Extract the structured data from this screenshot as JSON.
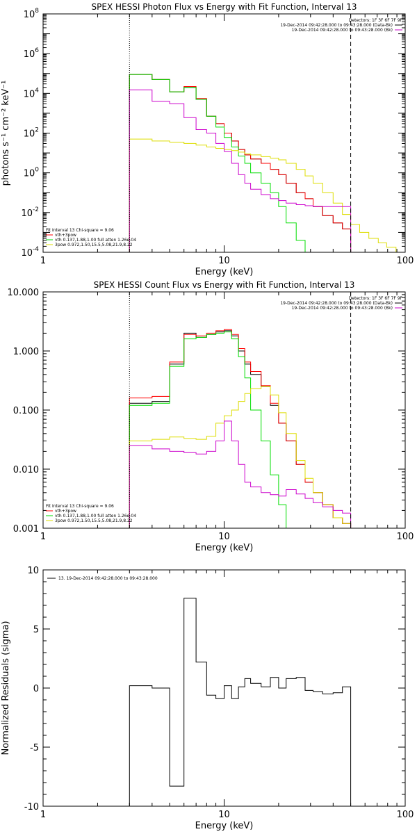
{
  "chart_data": [
    {
      "type": "line",
      "title": "SPEX HESSI Photon Flux vs Energy with Fit Function, Interval 13",
      "xlabel": "Energy (keV)",
      "ylabel": "photons s⁻¹ cm⁻² keV⁻¹",
      "xscale": "log",
      "yscale": "log",
      "xlim": [
        1,
        100
      ],
      "ylim": [
        0.0001,
        100000000
      ],
      "x_ticks": [
        "1",
        "10",
        "100"
      ],
      "y_ticks": [
        {
          "base": "10",
          "exp": "-4",
          "v": 0.0001
        },
        {
          "base": "10",
          "exp": "-2",
          "v": 0.01
        },
        {
          "base": "10",
          "exp": "0",
          "v": 1
        },
        {
          "base": "10",
          "exp": "2",
          "v": 100
        },
        {
          "base": "10",
          "exp": "4",
          "v": 10000
        },
        {
          "base": "10",
          "exp": "6",
          "v": 1000000
        },
        {
          "base": "10",
          "exp": "8",
          "v": 100000000
        }
      ],
      "vlines": [
        {
          "x": 3,
          "style": "dotted"
        },
        {
          "x": 50,
          "style": "dashed"
        }
      ],
      "legend_right": {
        "lines": [
          "Detectors: 1F 3F 6F 7F 9F",
          "19-Dec-2014 09:42:28.000 to 09:43:28.000 (Data-Bk)",
          "19-Dec-2014 09:42:28.000 to 09:43:28.000 (Bk)"
        ],
        "colors": [
          "",
          "#000000",
          "#cc00cc"
        ]
      },
      "legend_left": {
        "lines": [
          "Fit Interval 13   Chi-square = 9.06",
          "vth+3pow",
          "vth 0.137,1.88,1.00  full atten 1.26e-04",
          "3pow 0.972,1.50,15.5,5.08,21.9,8.22"
        ],
        "colors": [
          "",
          "#ff0000",
          "#00dd00",
          "#dddd00"
        ]
      },
      "series": [
        {
          "name": "19-Dec-2014 09:42:28.000 to 09:43:28.000 (Data-Bk)",
          "color": "#000000",
          "edges": [
            3,
            4,
            5,
            6,
            7,
            8,
            9,
            10,
            11,
            12,
            13,
            14,
            16,
            18,
            20,
            22,
            25,
            28,
            31,
            35,
            40,
            45,
            50
          ],
          "y": [
            90000,
            50000,
            12000,
            20000,
            5000,
            700,
            300,
            100,
            40,
            15,
            8,
            5,
            3,
            1.5,
            0.8,
            0.3,
            0.1,
            0.05,
            0.02,
            0.007,
            0.003,
            0.0015
          ]
        },
        {
          "name": "vth+3pow",
          "color": "#ff0000",
          "edges": [
            3,
            4,
            5,
            6,
            7,
            8,
            9,
            10,
            11,
            12,
            13,
            14,
            16,
            18,
            20,
            22,
            25,
            28,
            31,
            35,
            40,
            45,
            50
          ],
          "y": [
            90000,
            50000,
            12000,
            22000,
            5500,
            700,
            300,
            100,
            40,
            15,
            8,
            5,
            3,
            1.5,
            0.8,
            0.3,
            0.1,
            0.05,
            0.02,
            0.007,
            0.003,
            0.0015
          ]
        },
        {
          "name": "vth 0.137,1.88,1.00  full atten 1.26e-04",
          "color": "#00dd00",
          "edges": [
            3,
            4,
            5,
            6,
            7,
            8,
            9,
            10,
            11,
            12,
            13,
            14,
            16,
            18,
            20,
            22,
            25,
            28,
            30
          ],
          "y": [
            90000,
            50000,
            12000,
            20000,
            5000,
            700,
            200,
            60,
            20,
            7,
            3,
            1,
            0.3,
            0.1,
            0.02,
            0.003,
            0.0004,
            0.0001
          ]
        },
        {
          "name": "3pow 0.972,1.50,15.5,5.08,21.9,8.22",
          "color": "#dddd00",
          "edges": [
            3,
            4,
            5,
            6,
            7,
            8,
            9,
            10,
            11,
            12,
            13,
            14,
            16,
            18,
            20,
            22,
            25,
            28,
            31,
            35,
            40,
            45,
            50,
            56,
            63,
            71,
            79,
            89,
            100
          ],
          "y": [
            50,
            40,
            35,
            30,
            25,
            20,
            17,
            15,
            13,
            11,
            9,
            8,
            6.5,
            5.5,
            4.5,
            3,
            1.5,
            0.7,
            0.3,
            0.1,
            0.03,
            0.008,
            0.0025,
            0.001,
            0.0005,
            0.0003,
            0.00018,
            0.0001
          ]
        },
        {
          "name": "19-Dec-2014 09:42:28.000 to 09:43:28.000 (Bk)",
          "color": "#cc00cc",
          "edges": [
            3,
            4,
            5,
            6,
            7,
            8,
            9,
            10,
            11,
            12,
            13,
            14,
            16,
            18,
            20,
            22,
            25,
            28,
            31,
            35,
            40,
            45,
            50
          ],
          "y": [
            15000,
            4000,
            3000,
            600,
            150,
            100,
            30,
            12,
            3,
            0.8,
            0.3,
            0.15,
            0.08,
            0.05,
            0.04,
            0.03,
            0.025,
            0.022,
            0.02,
            0.02,
            0.02,
            0.02
          ]
        }
      ]
    },
    {
      "type": "line",
      "title": "SPEX HESSI Count Flux vs Energy with Fit Function, Interval 13",
      "xlabel": "Energy (keV)",
      "ylabel": "",
      "xscale": "log",
      "yscale": "log",
      "xlim": [
        1,
        100
      ],
      "ylim": [
        0.001,
        10
      ],
      "x_ticks": [
        "1",
        "10",
        "100"
      ],
      "y_ticks": [
        {
          "label": "0.001",
          "v": 0.001
        },
        {
          "label": "0.010",
          "v": 0.01
        },
        {
          "label": "0.100",
          "v": 0.1
        },
        {
          "label": "1.000",
          "v": 1
        },
        {
          "label": "10.000",
          "v": 10
        }
      ],
      "vlines": [
        {
          "x": 3,
          "style": "dotted"
        },
        {
          "x": 50,
          "style": "dashed"
        }
      ],
      "legend_right": {
        "lines": [
          "Detectors: 1F 3F 6F 7F 9F",
          "19-Dec-2014 09:42:28.000 to 09:43:28.000 (Data-Bk)",
          "19-Dec-2014 09:42:28.000 to 09:43:28.000 (Bk)"
        ],
        "colors": [
          "",
          "#000000",
          "#cc00cc"
        ]
      },
      "legend_left": {
        "lines": [
          "Fit Interval 13   Chi-square = 9.06",
          "vth+3pow",
          "vth 0.137,1.88,1.00  full atten 1.26e-04",
          "3pow 0.972,1.50,15.5,5.08,21.9,8.22"
        ],
        "colors": [
          "",
          "#ff0000",
          "#00dd00",
          "#dddd00"
        ]
      },
      "series": [
        {
          "name": "19-Dec-2014 09:42:28.000 to 09:43:28.000 (Data-Bk)",
          "color": "#000000",
          "edges": [
            3,
            4,
            5,
            6,
            7,
            8,
            9,
            10,
            11,
            12,
            13,
            14,
            16,
            18,
            20,
            22,
            25,
            28,
            31,
            35,
            40,
            45,
            50
          ],
          "y": [
            0.13,
            0.14,
            0.6,
            2.0,
            1.7,
            1.9,
            2.1,
            2.2,
            1.8,
            1.0,
            0.6,
            0.4,
            0.25,
            0.12,
            0.06,
            0.03,
            0.012,
            0.006,
            0.004,
            0.0025,
            0.0015,
            0.0012
          ]
        },
        {
          "name": "vth+3pow",
          "color": "#ff0000",
          "edges": [
            3,
            4,
            5,
            6,
            7,
            8,
            9,
            10,
            11,
            12,
            13,
            14,
            16,
            18,
            20,
            22,
            25,
            28,
            31,
            35,
            40,
            45,
            50
          ],
          "y": [
            0.16,
            0.17,
            0.65,
            1.9,
            1.8,
            2.0,
            2.2,
            2.3,
            1.9,
            1.1,
            0.65,
            0.45,
            0.26,
            0.13,
            0.06,
            0.03,
            0.012,
            0.006,
            0.004,
            0.0025,
            0.0015,
            0.0012
          ]
        },
        {
          "name": "vth 0.137,1.88,1.00  full atten 1.26e-04",
          "color": "#00dd00",
          "edges": [
            3,
            4,
            5,
            6,
            7,
            8,
            9,
            10,
            11,
            12,
            13,
            14,
            16,
            18,
            20,
            22,
            25
          ],
          "y": [
            0.12,
            0.13,
            0.55,
            1.6,
            1.7,
            1.9,
            2.0,
            2.1,
            1.6,
            0.8,
            0.35,
            0.1,
            0.03,
            0.008,
            0.0025,
            0.0008
          ]
        },
        {
          "name": "3pow 0.972,1.50,15.5,5.08,21.9,8.22",
          "color": "#dddd00",
          "edges": [
            3,
            4,
            5,
            6,
            7,
            8,
            9,
            10,
            11,
            12,
            13,
            14,
            16,
            18,
            20,
            22,
            25,
            28,
            31,
            35,
            40,
            45,
            50
          ],
          "y": [
            0.03,
            0.032,
            0.035,
            0.033,
            0.032,
            0.036,
            0.06,
            0.08,
            0.1,
            0.14,
            0.19,
            0.23,
            0.25,
            0.18,
            0.09,
            0.04,
            0.014,
            0.007,
            0.004,
            0.0025,
            0.0015,
            0.0012
          ]
        },
        {
          "name": "19-Dec-2014 09:42:28.000 to 09:43:28.000 (Bk)",
          "color": "#cc00cc",
          "edges": [
            3,
            4,
            5,
            6,
            7,
            8,
            9,
            10,
            11,
            12,
            13,
            14,
            16,
            18,
            20,
            22,
            25,
            28,
            31,
            35,
            40,
            45,
            50
          ],
          "y": [
            0.025,
            0.022,
            0.02,
            0.019,
            0.018,
            0.02,
            0.03,
            0.065,
            0.03,
            0.012,
            0.006,
            0.005,
            0.004,
            0.0037,
            0.0035,
            0.0045,
            0.0038,
            0.0032,
            0.0027,
            0.0023,
            0.002,
            0.0018
          ]
        }
      ]
    },
    {
      "type": "line",
      "title": "",
      "xlabel": "Energy (keV)",
      "ylabel": "Normalized Residuals (sigma)",
      "xscale": "log",
      "yscale": "linear",
      "xlim": [
        1,
        100
      ],
      "ylim": [
        -10,
        10
      ],
      "x_ticks": [
        "1",
        "10",
        "100"
      ],
      "y_ticks": [
        {
          "label": "-10",
          "v": -10
        },
        {
          "label": "-5",
          "v": -5
        },
        {
          "label": "0",
          "v": 0
        },
        {
          "label": "5",
          "v": 5
        },
        {
          "label": "10",
          "v": 10
        }
      ],
      "vlines": [],
      "legend_right": {
        "lines": [],
        "colors": []
      },
      "legend_left": {
        "lines": [],
        "colors": []
      },
      "legend_top_left": {
        "lines": [
          "13. 19-Dec-2014 09:42:28.000 to 09:43:28.000"
        ],
        "colors": [
          "#000000"
        ]
      },
      "series": [
        {
          "name": "13. 19-Dec-2014 09:42:28.000 to 09:43:28.000",
          "color": "#000000",
          "baseline": -10,
          "edges": [
            3,
            4,
            5,
            6,
            7,
            8,
            9,
            10,
            11,
            12,
            13,
            14,
            16,
            18,
            20,
            22,
            25,
            28,
            31,
            35,
            40,
            45,
            50
          ],
          "y": [
            0.2,
            0.0,
            -8.3,
            7.6,
            2.2,
            -0.6,
            -0.9,
            0.2,
            -0.9,
            0.1,
            0.8,
            0.4,
            0.1,
            0.9,
            0.0,
            0.8,
            0.9,
            -0.2,
            -0.3,
            -0.5,
            -0.4,
            0.1
          ]
        }
      ]
    }
  ]
}
